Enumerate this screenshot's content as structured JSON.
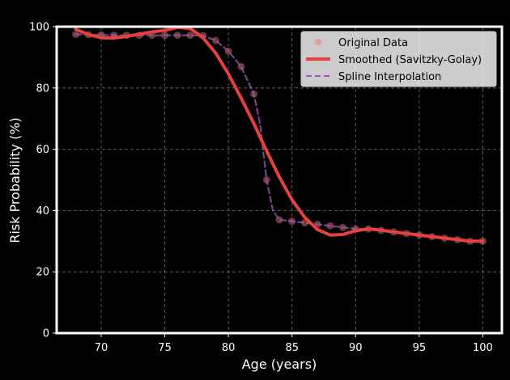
{
  "chart_data": {
    "type": "line",
    "title": "",
    "xlabel": "Age (years)",
    "ylabel": "Risk Probability (%)",
    "xlim": [
      66.5,
      101.5
    ],
    "ylim": [
      0,
      100
    ],
    "xticks": [
      70,
      75,
      80,
      85,
      90,
      95,
      100
    ],
    "yticks": [
      0,
      20,
      40,
      60,
      80,
      100
    ],
    "grid": true,
    "legend_position": "top-right",
    "series": [
      {
        "name": "Original Data",
        "kind": "scatter",
        "color": "#f08080",
        "x": [
          68,
          69,
          70,
          71,
          72,
          73,
          74,
          75,
          76,
          77,
          78,
          79,
          80,
          81,
          82,
          83,
          84,
          85,
          86,
          87,
          88,
          89,
          90,
          91,
          92,
          93,
          94,
          95,
          96,
          97,
          98,
          99,
          100
        ],
        "y": [
          97.5,
          97.4,
          97.3,
          97.2,
          97.2,
          97.2,
          97.2,
          97.2,
          97.2,
          97.2,
          97.1,
          95.5,
          92,
          87,
          78,
          50,
          37,
          36.5,
          36,
          35.5,
          35,
          34.5,
          34,
          34,
          33.5,
          33,
          32.5,
          32,
          31.5,
          31,
          30.5,
          30,
          30
        ]
      },
      {
        "name": "Smoothed (Savitzky-Golay)",
        "kind": "line",
        "color": "#e8403c",
        "x": [
          68,
          69,
          70,
          71,
          72,
          73,
          74,
          75,
          76,
          77,
          78,
          79,
          80,
          81,
          82,
          83,
          84,
          85,
          86,
          87,
          88,
          89,
          90,
          91,
          92,
          93,
          94,
          95,
          96,
          97,
          98,
          99,
          100
        ],
        "y": [
          99.2,
          97.4,
          96.4,
          96.3,
          96.8,
          97.6,
          98.3,
          98.8,
          99.8,
          99.4,
          96.4,
          91.4,
          84.6,
          76.7,
          68.4,
          59.5,
          51,
          43.5,
          37.8,
          33.8,
          32,
          32.2,
          33.4,
          34,
          33.6,
          33,
          32.5,
          32,
          31.5,
          31,
          30.5,
          30,
          30
        ]
      },
      {
        "name": "Spline Interpolation",
        "kind": "line",
        "color": "#9b59b6",
        "dashed": true,
        "x": [
          68,
          69,
          70,
          71,
          72,
          73,
          74,
          75,
          76,
          77,
          78,
          79,
          80,
          81,
          82,
          82.5,
          83,
          83.5,
          84,
          85,
          86,
          87,
          88,
          89,
          90,
          91,
          92,
          93,
          94,
          95,
          96,
          97,
          98,
          99,
          100
        ],
        "y": [
          97.5,
          97.4,
          97.3,
          97.2,
          97.2,
          97.2,
          97.2,
          97.2,
          97.2,
          97.2,
          97.1,
          95.5,
          92,
          87,
          78,
          68,
          50,
          40,
          37,
          36.5,
          36,
          35.5,
          35,
          34.5,
          34,
          34,
          33.5,
          33,
          32.5,
          32,
          31.5,
          31,
          30.5,
          30,
          30
        ]
      }
    ]
  }
}
